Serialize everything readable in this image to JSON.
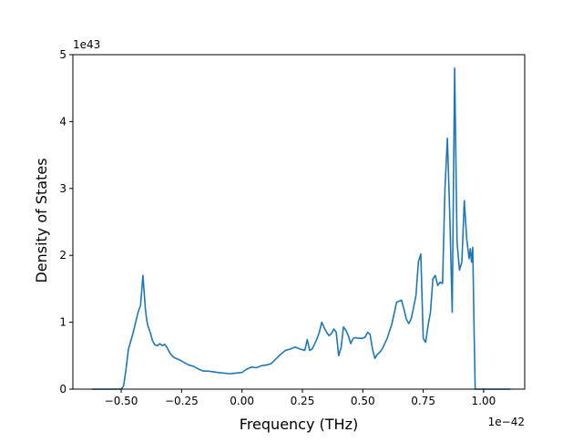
{
  "chart_data": {
    "type": "line",
    "xlabel": "Frequency (THz)",
    "ylabel": "Density of States",
    "x_offset_text": "1e−42",
    "y_offset_text": "1e43",
    "xlim": [
      -0.7,
      1.17
    ],
    "ylim": [
      0,
      5
    ],
    "grid": false,
    "line_color": "#1f77b4",
    "x_ticks": [
      {
        "value": -0.5,
        "label": "−0.50"
      },
      {
        "value": -0.25,
        "label": "−0.25"
      },
      {
        "value": 0.0,
        "label": "0.00"
      },
      {
        "value": 0.25,
        "label": "0.25"
      },
      {
        "value": 0.5,
        "label": "0.50"
      },
      {
        "value": 0.75,
        "label": "0.75"
      },
      {
        "value": 1.0,
        "label": "1.00"
      }
    ],
    "y_ticks": [
      {
        "value": 0,
        "label": "0"
      },
      {
        "value": 1,
        "label": "1"
      },
      {
        "value": 2,
        "label": "2"
      },
      {
        "value": 3,
        "label": "3"
      },
      {
        "value": 4,
        "label": "4"
      },
      {
        "value": 5,
        "label": "5"
      }
    ],
    "series": [
      {
        "x": [
          -0.62,
          -0.55,
          -0.5,
          -0.49,
          -0.48,
          -0.47,
          -0.46,
          -0.45,
          -0.44,
          -0.43,
          -0.42,
          -0.41,
          -0.405,
          -0.4,
          -0.395,
          -0.39,
          -0.38,
          -0.37,
          -0.36,
          -0.35,
          -0.34,
          -0.33,
          -0.32,
          -0.31,
          -0.3,
          -0.29,
          -0.28,
          -0.26,
          -0.24,
          -0.22,
          -0.2,
          -0.18,
          -0.16,
          -0.14,
          -0.12,
          -0.1,
          -0.05,
          0.0,
          0.02,
          0.04,
          0.06,
          0.08,
          0.1,
          0.12,
          0.14,
          0.16,
          0.18,
          0.2,
          0.22,
          0.24,
          0.26,
          0.27,
          0.28,
          0.29,
          0.3,
          0.31,
          0.32,
          0.33,
          0.34,
          0.35,
          0.36,
          0.37,
          0.38,
          0.39,
          0.4,
          0.41,
          0.42,
          0.43,
          0.44,
          0.45,
          0.46,
          0.47,
          0.48,
          0.49,
          0.5,
          0.51,
          0.52,
          0.53,
          0.54,
          0.55,
          0.56,
          0.57,
          0.58,
          0.6,
          0.62,
          0.64,
          0.66,
          0.67,
          0.68,
          0.69,
          0.7,
          0.71,
          0.72,
          0.73,
          0.74,
          0.75,
          0.76,
          0.77,
          0.78,
          0.79,
          0.8,
          0.81,
          0.82,
          0.83,
          0.84,
          0.85,
          0.86,
          0.87,
          0.88,
          0.89,
          0.9,
          0.91,
          0.92,
          0.93,
          0.94,
          0.945,
          0.95,
          0.955,
          0.96,
          0.965,
          0.97,
          1.0,
          1.05,
          1.11
        ],
        "y": [
          0.0,
          0.0,
          0.0,
          0.05,
          0.3,
          0.6,
          0.72,
          0.85,
          1.0,
          1.15,
          1.25,
          1.7,
          1.45,
          1.2,
          1.05,
          0.95,
          0.85,
          0.72,
          0.66,
          0.65,
          0.68,
          0.65,
          0.67,
          0.62,
          0.55,
          0.5,
          0.47,
          0.44,
          0.4,
          0.36,
          0.34,
          0.3,
          0.27,
          0.27,
          0.26,
          0.25,
          0.23,
          0.25,
          0.3,
          0.33,
          0.32,
          0.35,
          0.36,
          0.38,
          0.45,
          0.52,
          0.58,
          0.6,
          0.63,
          0.6,
          0.58,
          0.74,
          0.58,
          0.6,
          0.67,
          0.75,
          0.85,
          1.0,
          0.92,
          0.85,
          0.8,
          0.83,
          0.9,
          0.85,
          0.5,
          0.62,
          0.93,
          0.88,
          0.8,
          0.68,
          0.76,
          0.77,
          0.76,
          0.76,
          0.76,
          0.78,
          0.85,
          0.82,
          0.6,
          0.46,
          0.52,
          0.55,
          0.6,
          0.75,
          0.97,
          1.3,
          1.33,
          1.2,
          1.05,
          0.98,
          1.05,
          1.22,
          1.4,
          1.9,
          2.02,
          0.76,
          0.7,
          0.95,
          1.15,
          1.65,
          1.7,
          1.55,
          1.6,
          1.58,
          3.0,
          3.75,
          2.6,
          1.15,
          4.8,
          2.2,
          1.78,
          1.9,
          2.82,
          2.25,
          1.95,
          2.1,
          1.9,
          2.12,
          1.0,
          0.0,
          0.0,
          0.0,
          0.0,
          0.0
        ]
      }
    ]
  }
}
